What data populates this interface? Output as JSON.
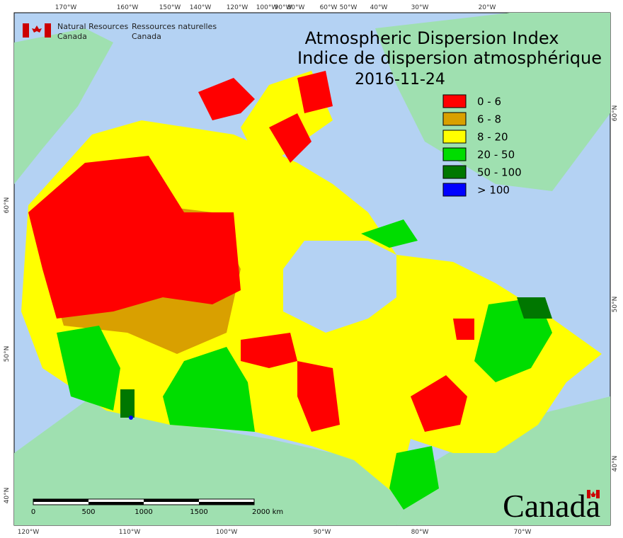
{
  "header": {
    "title_en": "Atmospheric Dispersion Index",
    "title_fr": "Indice de dispersion atmosphérique",
    "date": "2016-11-24"
  },
  "agency": {
    "en": [
      "Natural Resources",
      "Canada"
    ],
    "fr": [
      "Ressources naturelles",
      "Canada"
    ]
  },
  "legend": [
    {
      "label": "0 - 6",
      "color": "#ff0000"
    },
    {
      "label": "6 - 8",
      "color": "#d9a000"
    },
    {
      "label": "8 - 20",
      "color": "#ffff00"
    },
    {
      "label": "20 - 50",
      "color": "#00dd00"
    },
    {
      "label": "50 - 100",
      "color": "#007700"
    },
    {
      "label": "> 100",
      "color": "#0000ff"
    }
  ],
  "graticule": {
    "top": [
      "170°W",
      "160°W",
      "150°W",
      "140°W",
      "120°W",
      "100°W",
      "90°W",
      "80°W",
      "60°W",
      "50°W",
      "40°W",
      "30°W",
      "20°W"
    ],
    "bottom": [
      "120°W",
      "110°W",
      "100°W",
      "90°W",
      "80°W",
      "70°W"
    ],
    "left": [
      "60°N",
      "50°N",
      "40°N"
    ],
    "right": [
      "60°N",
      "50°N",
      "40°N"
    ]
  },
  "scale_bar": {
    "labels": [
      "0",
      "500",
      "1000",
      "1500",
      "2000 km"
    ]
  },
  "wordmark": "Canada"
}
